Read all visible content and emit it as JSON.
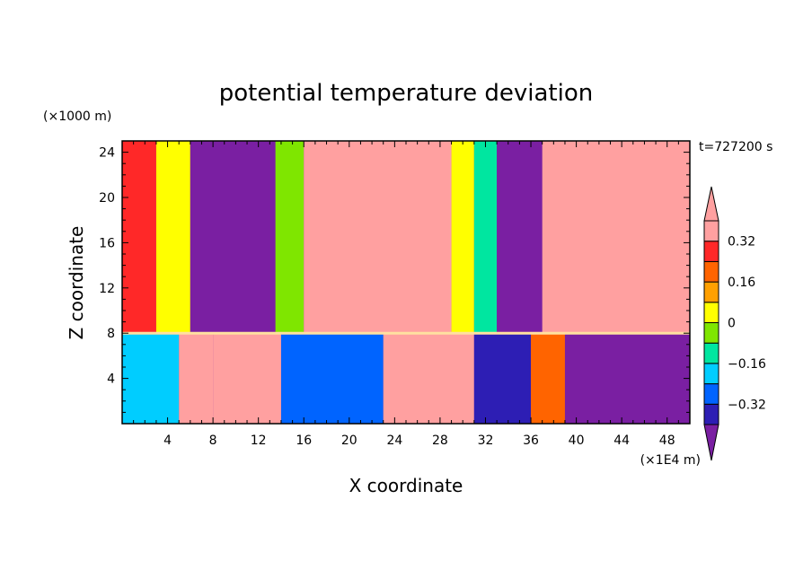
{
  "chart_data": {
    "type": "heatmap",
    "title": "potential temperature deviation",
    "xlabel": "X coordinate",
    "ylabel": "Z coordinate",
    "x_unit": "(×1E4 m)",
    "y_unit": "(×1000 m)",
    "time_label": "t=727200 s",
    "xlim": [
      0,
      50
    ],
    "ylim": [
      0,
      25
    ],
    "x_ticks": [
      4,
      8,
      12,
      16,
      20,
      24,
      28,
      32,
      36,
      40,
      44,
      48
    ],
    "y_ticks": [
      4,
      8,
      12,
      16,
      20,
      24
    ],
    "colorbar": {
      "levels": [
        -0.4,
        -0.32,
        -0.24,
        -0.16,
        -0.08,
        0,
        0.08,
        0.16,
        0.24,
        0.32,
        0.4
      ],
      "labeled": [
        0.32,
        0.16,
        0,
        -0.16,
        -0.32
      ],
      "labels": [
        "0.32",
        "0.16",
        "0",
        "−0.16",
        "−0.32"
      ],
      "colors": [
        "#7a1fa2",
        "#2d1eb4",
        "#0064ff",
        "#00cdff",
        "#00e6a0",
        "#7fe600",
        "#ffff00",
        "#ffa000",
        "#ff6400",
        "#ff2828",
        "#ffa0a0",
        "#ffa0a0"
      ]
    },
    "upper_layer_columns": [
      {
        "x": [
          0,
          3
        ],
        "value": 0.3
      },
      {
        "x": [
          3,
          6
        ],
        "value": 0.05
      },
      {
        "x": [
          6,
          13.5
        ],
        "value": -0.45
      },
      {
        "x": [
          13.5,
          16
        ],
        "value": 0.0
      },
      {
        "x": [
          16,
          29
        ],
        "value": 0.38
      },
      {
        "x": [
          29,
          31
        ],
        "value": 0.05
      },
      {
        "x": [
          31,
          33
        ],
        "value": -0.1
      },
      {
        "x": [
          33,
          37
        ],
        "value": -0.45
      },
      {
        "x": [
          37,
          50
        ],
        "value": 0.33
      }
    ],
    "lower_layer_columns": [
      {
        "x": [
          0,
          5
        ],
        "value": -0.2
      },
      {
        "x": [
          5,
          8
        ],
        "value": 0.42
      },
      {
        "x": [
          8,
          14
        ],
        "value": 0.45
      },
      {
        "x": [
          14,
          23
        ],
        "value": -0.3
      },
      {
        "x": [
          23,
          31
        ],
        "value": 0.42
      },
      {
        "x": [
          31,
          36
        ],
        "value": -0.35
      },
      {
        "x": [
          36,
          39
        ],
        "value": 0.2
      },
      {
        "x": [
          39,
          50
        ],
        "value": -0.4
      }
    ]
  }
}
